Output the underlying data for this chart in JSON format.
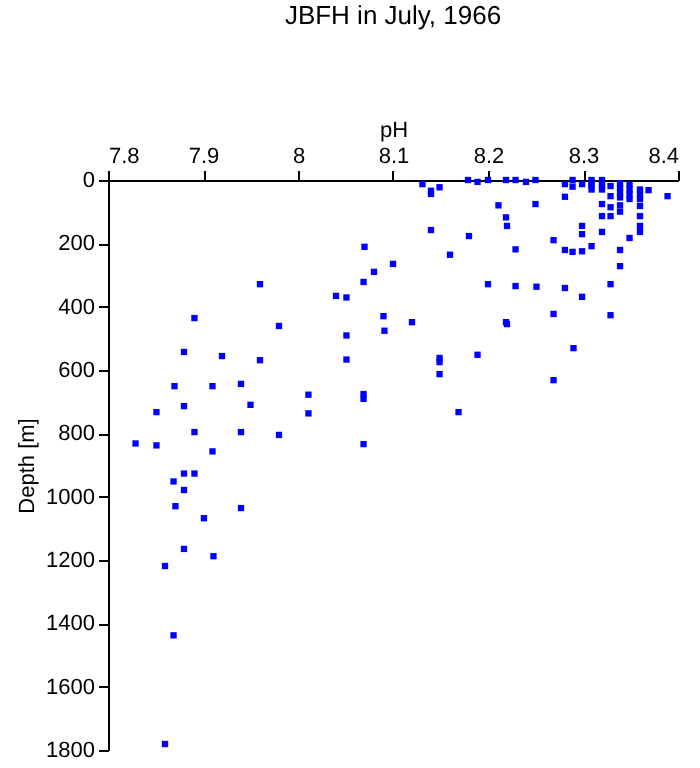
{
  "chart_data": {
    "type": "scatter",
    "title": "JBFH in July, 1966",
    "xlabel": "pH",
    "ylabel": "Depth [m]",
    "xlim": [
      7.8,
      8.4
    ],
    "xticks": [
      7.8,
      7.9,
      8,
      8.1,
      8.2,
      8.3,
      8.4
    ],
    "ylim": [
      1800,
      0
    ],
    "yticks": [
      0,
      200,
      400,
      600,
      800,
      1000,
      1200,
      1400,
      1600,
      1800
    ],
    "marker": "square",
    "grid": false,
    "series": [
      {
        "color": "#0000ff",
        "x": [
          8.07,
          8.08,
          8.069,
          8.04,
          8.051,
          7.96,
          7.891,
          7.98,
          8.051,
          7.88,
          7.92,
          7.96,
          8.051,
          7.87,
          7.91,
          7.94,
          7.95,
          7.88,
          8.011,
          8.011,
          8.069,
          8.069,
          7.851,
          7.891,
          7.94,
          7.98,
          7.829,
          7.851,
          7.91,
          8.069,
          7.88,
          7.891,
          7.869,
          7.88,
          7.871,
          7.901,
          7.94,
          7.88,
          7.911,
          7.86,
          7.869,
          7.86,
          8.131,
          8.149,
          8.14,
          8.14,
          8.179,
          8.189,
          8.2,
          8.219,
          8.229,
          8.24,
          8.25,
          8.281,
          8.289,
          8.289,
          8.299,
          8.309,
          8.309,
          8.309,
          8.309,
          8.32,
          8.32,
          8.32,
          8.32,
          8.329,
          8.339,
          8.339,
          8.339,
          8.339,
          8.339,
          8.339,
          8.349,
          8.349,
          8.349,
          8.349,
          8.36,
          8.36,
          8.36,
          8.369,
          8.389,
          8.211,
          8.25,
          8.281,
          8.32,
          8.329,
          8.329,
          8.329,
          8.36,
          8.36,
          8.32,
          8.219,
          8.22,
          8.299,
          8.299,
          8.36,
          8.36,
          8.32,
          8.349,
          8.14,
          8.18,
          8.269,
          8.229,
          8.281,
          8.289,
          8.299,
          8.309,
          8.339,
          8.16,
          8.1,
          8.339,
          8.2,
          8.229,
          8.251,
          8.281,
          8.329,
          8.299,
          8.269,
          8.329,
          8.09,
          8.12,
          8.219,
          8.22,
          8.091,
          8.29,
          8.189,
          8.149,
          8.149,
          8.149,
          8.269,
          8.169
        ],
        "values": [
          211,
          290,
          322,
          366,
          371,
          329,
          436,
          461,
          491,
          543,
          556,
          569,
          567,
          651,
          651,
          644,
          710,
          714,
          678,
          737,
          676,
          691,
          733,
          796,
          796,
          805,
          832,
          838,
          857,
          834,
          927,
          927,
          952,
          979,
          1030,
          1068,
          1036,
          1165,
          1188,
          1219,
          1438,
          1781,
          13,
          23,
          34,
          44,
          0,
          6,
          0,
          0,
          0,
          6,
          0,
          13,
          0,
          21,
          13,
          0,
          10,
          20,
          30,
          0,
          10,
          20,
          30,
          19,
          10,
          25,
          40,
          55,
          80,
          100,
          15,
          30,
          45,
          60,
          30,
          45,
          60,
          32,
          51,
          80,
          76,
          53,
          76,
          51,
          86,
          114,
          82,
          114,
          114,
          118,
          145,
          145,
          171,
          145,
          164,
          164,
          183,
          158,
          177,
          190,
          219,
          221,
          227,
          225,
          209,
          221,
          236,
          265,
          272,
          329,
          335,
          337,
          341,
          329,
          369,
          423,
          427,
          430,
          449,
          449,
          455,
          476,
          531,
          552,
          562,
          575,
          613,
          632,
          733
        ]
      }
    ]
  }
}
